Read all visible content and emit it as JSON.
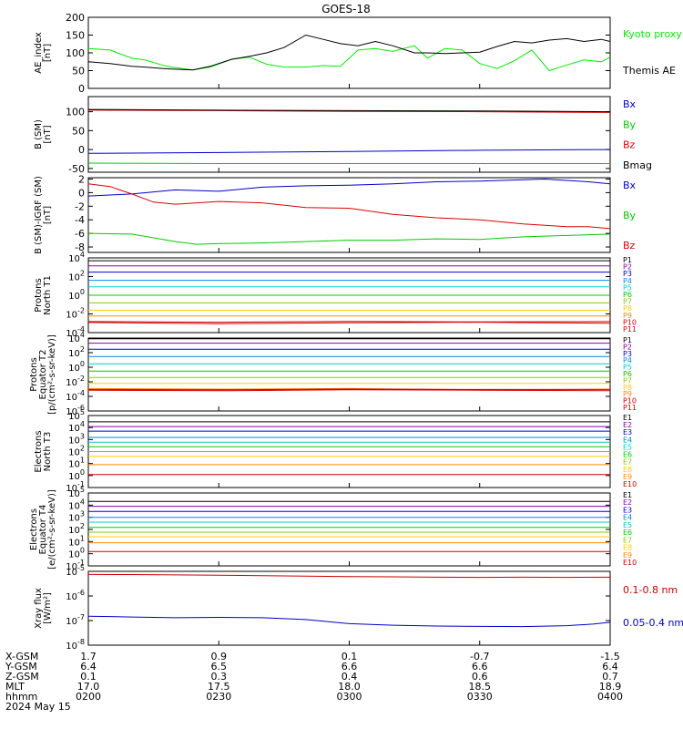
{
  "title": "GOES-18",
  "x_axis": {
    "rows": [
      {
        "label": "X-GSM",
        "values": [
          "1.7",
          "0.9",
          "0.1",
          "-0.7",
          "-1.5"
        ]
      },
      {
        "label": "Y-GSM",
        "values": [
          "6.4",
          "6.5",
          "6.6",
          "6.6",
          "6.4"
        ]
      },
      {
        "label": "Z-GSM",
        "values": [
          "0.1",
          "0.3",
          "0.4",
          "0.6",
          "0.7"
        ]
      },
      {
        "label": "MLT",
        "values": [
          "17.0",
          "17.5",
          "18.0",
          "18.5",
          "18.9"
        ]
      },
      {
        "label": "hhmm",
        "values": [
          "0200",
          "0230",
          "0300",
          "0330",
          "0400"
        ]
      }
    ],
    "date": "2024 May 15"
  },
  "colors": {
    "ae_kyoto": "#00ee00",
    "ae_themis": "#000000",
    "bx": "#0000cc",
    "by": "#00cc00",
    "bz": "#dd0000",
    "bmag": "#000000",
    "xray_long": "#cc0000",
    "xray_short": "#0000cc"
  },
  "chart_data": [
    {
      "type": "line",
      "ylabel": "AE_index [nT]",
      "ylim": [
        0,
        200
      ],
      "yticks": [
        "0",
        "50",
        "100",
        "150",
        "200"
      ],
      "time_range": [
        "0200",
        "0400"
      ],
      "series": [
        {
          "name": "Kyoto proxy AE",
          "color": "#00ee00",
          "t": [
            0,
            5,
            10,
            13,
            18,
            24,
            28,
            33,
            37,
            41,
            45,
            50,
            54,
            58,
            62,
            66,
            70,
            75,
            78,
            82,
            86,
            90,
            94,
            98,
            102,
            106,
            110,
            114,
            118,
            120
          ],
          "v": [
            112,
            108,
            85,
            80,
            62,
            52,
            60,
            82,
            88,
            68,
            60,
            60,
            64,
            62,
            108,
            112,
            104,
            120,
            85,
            112,
            108,
            70,
            56,
            78,
            108,
            50,
            66,
            80,
            75,
            88
          ]
        },
        {
          "name": "Themis AE",
          "color": "#000000",
          "t": [
            0,
            5,
            10,
            13,
            18,
            24,
            28,
            33,
            37,
            41,
            45,
            50,
            54,
            58,
            62,
            66,
            70,
            75,
            78,
            82,
            86,
            90,
            94,
            98,
            102,
            106,
            110,
            114,
            118,
            120
          ],
          "v": [
            75,
            70,
            62,
            60,
            55,
            52,
            62,
            82,
            90,
            100,
            115,
            150,
            138,
            126,
            120,
            132,
            120,
            100,
            100,
            98,
            100,
            102,
            118,
            132,
            128,
            136,
            140,
            132,
            138,
            132
          ]
        }
      ],
      "legend": [
        "Kyoto proxy AE",
        "Themis AE"
      ]
    },
    {
      "type": "line",
      "ylabel": "B (SM) [nT]",
      "ylim": [
        -60,
        140
      ],
      "yticks": [
        "-50",
        "0",
        "50",
        "100"
      ],
      "series": [
        {
          "name": "Bx",
          "color": "#0000cc",
          "t": [
            0,
            30,
            60,
            90,
            120
          ],
          "v": [
            -10,
            -8,
            -5,
            -2,
            0
          ]
        },
        {
          "name": "By",
          "color": "#00cc00",
          "t": [
            0,
            30,
            60,
            90,
            120
          ],
          "v": [
            -36,
            -37,
            -37,
            -37,
            -37
          ]
        },
        {
          "name": "Bz",
          "color": "#dd0000",
          "t": [
            0,
            30,
            60,
            90,
            120
          ],
          "v": [
            104,
            103,
            101,
            100,
            98
          ]
        },
        {
          "name": "Bmag",
          "color": "#000000",
          "t": [
            0,
            30,
            60,
            90,
            120
          ],
          "v": [
            106,
            104,
            103,
            102,
            100
          ]
        }
      ],
      "legend": [
        "Bx",
        "By",
        "Bz",
        "Bmag"
      ]
    },
    {
      "type": "line",
      "ylabel": "B (SM)-IGRF (SM) [nT]",
      "ylim": [
        -8.8,
        2.2
      ],
      "yticks": [
        "-8",
        "-6",
        "-4",
        "-2",
        "0",
        "2"
      ],
      "series": [
        {
          "name": "Bx",
          "color": "#0000cc",
          "t": [
            0,
            10,
            20,
            30,
            40,
            50,
            60,
            70,
            80,
            90,
            100,
            105,
            110,
            115,
            120
          ],
          "v": [
            -0.5,
            -0.2,
            0.4,
            0.2,
            0.8,
            1.0,
            1.1,
            1.3,
            1.6,
            1.7,
            1.9,
            2.0,
            1.8,
            1.6,
            1.3
          ]
        },
        {
          "name": "By",
          "color": "#00cc00",
          "t": [
            0,
            10,
            20,
            25,
            30,
            40,
            50,
            60,
            70,
            80,
            90,
            100,
            110,
            120
          ],
          "v": [
            -6.0,
            -6.1,
            -7.2,
            -7.6,
            -7.5,
            -7.4,
            -7.2,
            -7.0,
            -7.0,
            -6.8,
            -6.9,
            -6.5,
            -6.3,
            -6.1
          ]
        },
        {
          "name": "Bz",
          "color": "#dd0000",
          "t": [
            0,
            5,
            10,
            15,
            20,
            30,
            40,
            50,
            60,
            70,
            80,
            90,
            100,
            110,
            115,
            120
          ],
          "v": [
            1.3,
            0.9,
            -0.2,
            -1.4,
            -1.7,
            -1.3,
            -1.5,
            -2.2,
            -2.3,
            -3.2,
            -3.7,
            -4.0,
            -4.6,
            -5.0,
            -5.0,
            -5.3
          ]
        }
      ],
      "legend": [
        "Bx",
        "By",
        "Bz"
      ]
    },
    {
      "type": "line",
      "ylabel": "Protons North T1",
      "log": true,
      "ylim_exp": [
        -4,
        4
      ],
      "yticks": [
        "10-4",
        "10-2",
        "100",
        "102",
        "104"
      ],
      "series": [
        {
          "name": "P1",
          "color": "#000000",
          "v": [
            5000,
            5000,
            5000,
            5000,
            5000
          ]
        },
        {
          "name": "P2",
          "color": "#8800aa",
          "v": [
            1400,
            1400,
            1400,
            1400,
            1400
          ]
        },
        {
          "name": "P3",
          "color": "#0000cc",
          "v": [
            300,
            300,
            300,
            300,
            300
          ]
        },
        {
          "name": "P4",
          "color": "#0088ee",
          "v": [
            40,
            40,
            40,
            40,
            40
          ]
        },
        {
          "name": "P5",
          "color": "#00cccc",
          "v": [
            8,
            8,
            8,
            8,
            8
          ]
        },
        {
          "name": "P6",
          "color": "#00cc00",
          "v": [
            1,
            1,
            1,
            1,
            1
          ]
        },
        {
          "name": "P7",
          "color": "#88cc00",
          "v": [
            0.15,
            0.15,
            0.15,
            0.15,
            0.15
          ]
        },
        {
          "name": "P8",
          "color": "#ffcc00",
          "v": [
            0.025,
            0.025,
            0.025,
            0.025,
            0.025
          ]
        },
        {
          "name": "P9",
          "color": "#ff8800",
          "v": [
            0.006,
            0.006,
            0.006,
            0.006,
            0.006
          ]
        },
        {
          "name": "P10",
          "color": "#cc0000",
          "v": [
            0.0015,
            0.0013,
            0.0016,
            0.0014,
            0.0015
          ]
        },
        {
          "name": "P11",
          "color": "#dd0000",
          "v": [
            0.0012,
            0.0009,
            0.0011,
            0.0013,
            0.001
          ]
        }
      ],
      "legend": [
        "P1",
        "P2",
        "P3",
        "P4",
        "P5",
        "P6",
        "P7",
        "P8",
        "P9",
        "P10",
        "P11"
      ]
    },
    {
      "type": "line",
      "ylabel": "Protons Equator T2 [p/(cm2-s-sr-keV)]",
      "log": true,
      "ylim_exp": [
        -6,
        4
      ],
      "yticks": [
        "10-6",
        "10-4",
        "10-2",
        "100",
        "102",
        "104"
      ],
      "series": [
        {
          "name": "P1",
          "color": "#000000",
          "v": [
            8000,
            8000,
            8000,
            8000,
            8000
          ]
        },
        {
          "name": "P2",
          "color": "#8800aa",
          "v": [
            2000,
            2000,
            2000,
            2000,
            2000
          ]
        },
        {
          "name": "P3",
          "color": "#0000cc",
          "v": [
            300,
            300,
            300,
            300,
            300
          ]
        },
        {
          "name": "P4",
          "color": "#0088ee",
          "v": [
            30,
            30,
            30,
            30,
            30
          ]
        },
        {
          "name": "P5",
          "color": "#00cccc",
          "v": [
            3,
            3,
            3,
            3,
            3
          ]
        },
        {
          "name": "P6",
          "color": "#00cc00",
          "v": [
            0.3,
            0.3,
            0.3,
            0.3,
            0.3
          ]
        },
        {
          "name": "P7",
          "color": "#88cc00",
          "v": [
            0.04,
            0.04,
            0.04,
            0.04,
            0.04
          ]
        },
        {
          "name": "P8",
          "color": "#ffcc00",
          "v": [
            0.006,
            0.006,
            0.006,
            0.006,
            0.006
          ]
        },
        {
          "name": "P9",
          "color": "#ff8800",
          "v": [
            0.0012,
            0.001,
            0.0012,
            0.0008,
            0.001
          ]
        },
        {
          "name": "P10",
          "color": "#cc0000",
          "v": [
            0.0009,
            0.0008,
            0.001,
            0.0009,
            0.0009
          ]
        },
        {
          "name": "P11",
          "color": "#dd0000",
          "v": [
            0.0007,
            0.0006,
            0.0008,
            0.0007,
            0.0006
          ]
        }
      ],
      "legend": [
        "P1",
        "P2",
        "P3",
        "P4",
        "P5",
        "P6",
        "P7",
        "P8",
        "P9",
        "P10",
        "P11"
      ]
    },
    {
      "type": "line",
      "ylabel": "Electrons North T3",
      "log": true,
      "ylim_exp": [
        -1,
        5
      ],
      "yticks": [
        "10-1",
        "100",
        "101",
        "102",
        "103",
        "104",
        "105"
      ],
      "series": [
        {
          "name": "E1",
          "color": "#000000",
          "v": [
            30000,
            30000,
            30000,
            30000,
            30000
          ]
        },
        {
          "name": "E2",
          "color": "#8800aa",
          "v": [
            12000,
            12000,
            12000,
            12000,
            12000
          ]
        },
        {
          "name": "E3",
          "color": "#0000cc",
          "v": [
            5000,
            5000,
            5000,
            5000,
            5000
          ]
        },
        {
          "name": "E4",
          "color": "#0088ee",
          "v": [
            1500,
            1500,
            1500,
            1500,
            1500
          ]
        },
        {
          "name": "E5",
          "color": "#00cccc",
          "v": [
            600,
            600,
            600,
            600,
            600
          ]
        },
        {
          "name": "E6",
          "color": "#00cc00",
          "v": [
            250,
            250,
            250,
            250,
            250
          ]
        },
        {
          "name": "E7",
          "color": "#88cc00",
          "v": [
            100,
            100,
            100,
            100,
            100
          ]
        },
        {
          "name": "E8",
          "color": "#ffcc00",
          "v": [
            40,
            40,
            40,
            40,
            40
          ]
        },
        {
          "name": "E9",
          "color": "#ff8800",
          "v": [
            8,
            8,
            8,
            8,
            8
          ]
        },
        {
          "name": "E10",
          "color": "#cc0000",
          "v": [
            1.2,
            1.2,
            1.2,
            1.2,
            1.2
          ]
        }
      ],
      "legend": [
        "E1",
        "E2",
        "E3",
        "E4",
        "E5",
        "E6",
        "E7",
        "E8",
        "E9",
        "E10"
      ]
    },
    {
      "type": "line",
      "ylabel": "Electrons Equator T4 [e/(cm2-s-sr-keV)]",
      "log": true,
      "ylim_exp": [
        -1,
        5
      ],
      "yticks": [
        "10-1",
        "100",
        "101",
        "102",
        "103",
        "104",
        "105"
      ],
      "series": [
        {
          "name": "E1",
          "color": "#000000",
          "v": [
            20000,
            20000,
            20000,
            20000,
            20000
          ]
        },
        {
          "name": "E2",
          "color": "#8800aa",
          "v": [
            8000,
            8000,
            8000,
            8000,
            8000
          ]
        },
        {
          "name": "E3",
          "color": "#0000cc",
          "v": [
            3000,
            3000,
            3000,
            3000,
            3000
          ]
        },
        {
          "name": "E4",
          "color": "#0088ee",
          "v": [
            1000,
            1000,
            1000,
            1000,
            1000
          ]
        },
        {
          "name": "E5",
          "color": "#00cccc",
          "v": [
            400,
            400,
            400,
            400,
            400
          ]
        },
        {
          "name": "E6",
          "color": "#00cc00",
          "v": [
            150,
            150,
            150,
            150,
            150
          ]
        },
        {
          "name": "E7",
          "color": "#88cc00",
          "v": [
            60,
            60,
            60,
            60,
            60
          ]
        },
        {
          "name": "E8",
          "color": "#ffcc00",
          "v": [
            25,
            25,
            25,
            25,
            25
          ]
        },
        {
          "name": "E9",
          "color": "#ff8800",
          "v": [
            8,
            8,
            8,
            8,
            8
          ]
        },
        {
          "name": "E10",
          "color": "#cc0000",
          "v": [
            1.5,
            1.5,
            1.5,
            1.5,
            1.5
          ]
        }
      ],
      "legend": [
        "E1",
        "E2",
        "E3",
        "E4",
        "E5",
        "E6",
        "E7",
        "E8",
        "E9",
        "E10"
      ]
    },
    {
      "type": "line",
      "ylabel": "Xray flux [W/m2]",
      "log": true,
      "ylim_exp": [
        -8,
        -5
      ],
      "yticks": [
        "10-8",
        "10-7",
        "10-6",
        "10-5"
      ],
      "series": [
        {
          "name": "0.1-0.8 nm",
          "color": "#cc0000",
          "t": [
            0,
            10,
            20,
            30,
            40,
            50,
            60,
            70,
            80,
            90,
            100,
            110,
            120
          ],
          "v": [
            7.5e-06,
            7.4e-06,
            7.2e-06,
            7e-06,
            6.7e-06,
            6.4e-06,
            6.1e-06,
            6e-06,
            5.8e-06,
            5.7e-06,
            5.8e-06,
            5.7e-06,
            5.8e-06
          ]
        },
        {
          "name": "0.05-0.4 nm",
          "color": "#0000cc",
          "t": [
            0,
            10,
            20,
            30,
            40,
            50,
            60,
            70,
            80,
            90,
            100,
            110,
            116,
            120
          ],
          "v": [
            1.5e-07,
            1.4e-07,
            1.3e-07,
            1.35e-07,
            1.3e-07,
            1.1e-07,
            7.5e-08,
            6.5e-08,
            6e-08,
            5.8e-08,
            5.7e-08,
            6.2e-08,
            7.2e-08,
            8.5e-08
          ]
        }
      ],
      "legend": [
        "0.1-0.8 nm",
        "0.05-0.4 nm"
      ]
    }
  ]
}
